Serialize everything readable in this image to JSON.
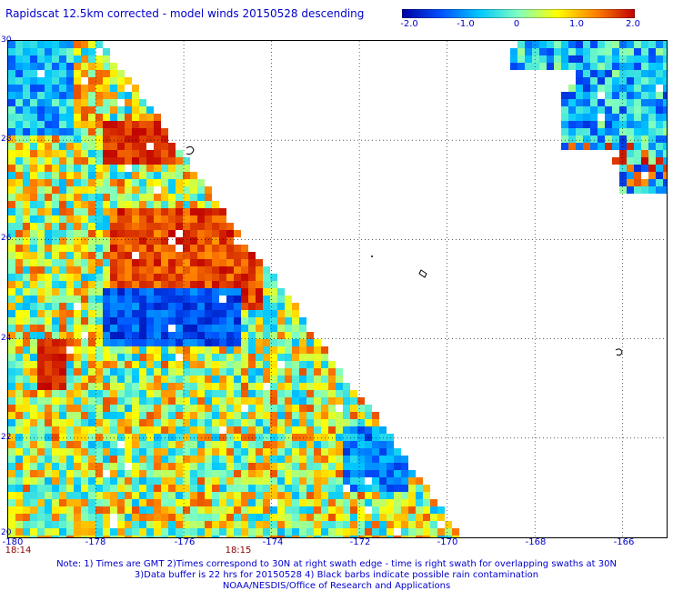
{
  "header": {
    "title": "Rapidscat 12.5km corrected - model winds 20150528 descending"
  },
  "colorbar": {
    "min": -2.0,
    "max": 2.0,
    "colors": [
      "#0000a0",
      "#0050ff",
      "#00c8ff",
      "#80ffc0",
      "#ffff00",
      "#ff8000",
      "#c00000"
    ],
    "tick_labels": [
      "-2.0",
      "-1.0",
      "0",
      "1.0",
      "2.0"
    ]
  },
  "map": {
    "lon_range": [
      -180,
      -165
    ],
    "lat_range": [
      20,
      30
    ],
    "grid": true,
    "lat_labels": [
      "30",
      "28",
      "26",
      "24",
      "22",
      "20"
    ],
    "lon_labels": [
      "-180",
      "-178",
      "-176",
      "-174",
      "-172",
      "-170",
      "-168",
      "-166"
    ],
    "time_labels": [
      "18:14",
      "18:15"
    ]
  },
  "footer": {
    "note_line1": "Note: 1) Times are GMT 2)Times correspond to 30N at right swath edge - time is right swath for overlapping swaths at 30N",
    "note_line2": "3)Data buffer is 22 hrs for 20150528 4) Black barbs indicate possible rain contamination",
    "credit": "NOAA/NESDIS/Office of Research and Applications"
  }
}
